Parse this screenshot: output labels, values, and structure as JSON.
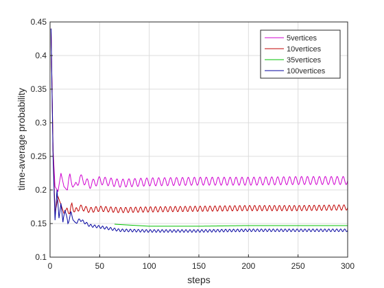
{
  "chart_data": {
    "type": "line",
    "xlabel": "steps",
    "ylabel": "time-average probability",
    "xlim": [
      0,
      300
    ],
    "ylim": [
      0.1,
      0.45
    ],
    "xticks": [
      0,
      50,
      100,
      150,
      200,
      250,
      300
    ],
    "yticks": [
      0.1,
      0.15,
      0.2,
      0.25,
      0.3,
      0.35,
      0.4,
      0.45
    ],
    "grid": true,
    "legend_position": "top-right",
    "series": [
      {
        "name": "5vertices",
        "color": "#d000d0",
        "x": [
          1,
          3,
          5,
          8,
          11,
          14,
          17,
          20,
          25,
          30,
          40,
          50,
          70,
          100,
          150,
          200,
          250,
          300
        ],
        "values": [
          0.44,
          0.26,
          0.205,
          0.198,
          0.225,
          0.205,
          0.2,
          0.219,
          0.203,
          0.218,
          0.208,
          0.214,
          0.21,
          0.212,
          0.213,
          0.213,
          0.214,
          0.214
        ],
        "osc_amp": 0.006,
        "osc_period": 6
      },
      {
        "name": "10vertices",
        "color": "#c00000",
        "x": [
          1,
          3,
          5,
          8,
          11,
          14,
          17,
          20,
          22,
          25,
          30,
          40,
          50,
          70,
          100,
          150,
          200,
          250,
          300
        ],
        "values": [
          0.44,
          0.26,
          0.165,
          0.19,
          0.178,
          0.165,
          0.173,
          0.166,
          0.178,
          0.168,
          0.174,
          0.17,
          0.172,
          0.17,
          0.171,
          0.172,
          0.173,
          0.173,
          0.174
        ],
        "osc_amp": 0.004,
        "osc_period": 5
      },
      {
        "name": "35vertices",
        "color": "#00c000",
        "x": [
          65,
          100,
          150,
          200,
          250,
          300
        ],
        "values": [
          0.149,
          0.146,
          0.146,
          0.147,
          0.147,
          0.147
        ],
        "osc_amp": 0.002,
        "osc_period": 3
      },
      {
        "name": "100vertices",
        "color": "#00009f",
        "x": [
          1,
          3,
          5,
          7,
          9,
          11,
          13,
          15,
          18,
          21,
          25,
          30,
          40,
          50,
          70,
          100,
          150,
          200,
          250,
          300
        ],
        "values": [
          0.44,
          0.25,
          0.155,
          0.2,
          0.158,
          0.18,
          0.152,
          0.172,
          0.15,
          0.166,
          0.15,
          0.156,
          0.147,
          0.145,
          0.14,
          0.139,
          0.139,
          0.14,
          0.14,
          0.14
        ],
        "osc_amp": 0.002,
        "osc_period": 4
      }
    ]
  }
}
